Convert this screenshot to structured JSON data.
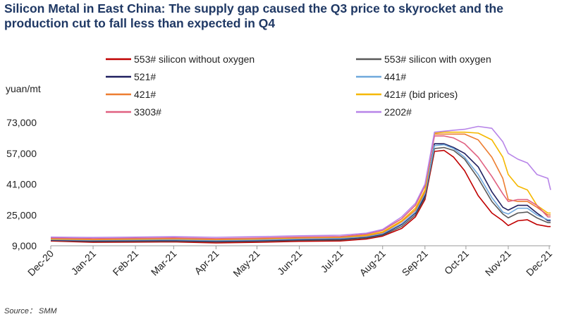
{
  "title": "Silicon Metal in East China: The supply gap caused the Q3 price to skyrocket and the production cut to fall less than expected in Q4",
  "source": "Source： SMM",
  "chart_data": {
    "type": "line",
    "ylabel": "yuan/mt",
    "xlabel": "",
    "ylim": [
      9000,
      73000
    ],
    "yticks": [
      9000,
      25000,
      41000,
      57000,
      73000
    ],
    "ytick_labels": [
      "9,000",
      "25,000",
      "41,000",
      "57,000",
      "73,000"
    ],
    "xlim": [
      "2020-12-01",
      "2021-12-02"
    ],
    "xticks": [
      "2020-12-01",
      "2021-01-01",
      "2021-02-01",
      "2021-03-01",
      "2021-04-01",
      "2021-05-01",
      "2021-06-01",
      "2021-07-01",
      "2021-08-01",
      "2021-09-01",
      "2021-10-01",
      "2021-11-01",
      "2021-12-01"
    ],
    "xtick_labels": [
      "Dec-20",
      "Jan-21",
      "Feb-21",
      "Mar-21",
      "Apr-21",
      "May-21",
      "Jun-21",
      "Jul-21",
      "Aug-21",
      "Sep-21",
      "Oct-21",
      "Nov-21",
      "Dec-21"
    ],
    "grid": false,
    "legend_position": "top",
    "series": [
      {
        "name": "553# silicon without oxygen",
        "color": "#c00000",
        "x": [
          "2020-12-01",
          "2021-01-01",
          "2021-02-01",
          "2021-03-01",
          "2021-04-01",
          "2021-05-01",
          "2021-06-01",
          "2021-07-01",
          "2021-07-20",
          "2021-08-01",
          "2021-08-15",
          "2021-08-25",
          "2021-09-01",
          "2021-09-08",
          "2021-09-15",
          "2021-09-22",
          "2021-09-30",
          "2021-10-10",
          "2021-10-20",
          "2021-10-28",
          "2021-11-01",
          "2021-11-08",
          "2021-11-15",
          "2021-11-22",
          "2021-11-30",
          "2021-12-02"
        ],
        "y": [
          11500,
          10800,
          10900,
          11000,
          10500,
          10800,
          11300,
          11500,
          12500,
          14000,
          18000,
          24000,
          33000,
          58000,
          58500,
          55000,
          48000,
          35000,
          26000,
          22000,
          19500,
          22000,
          22500,
          20000,
          19000,
          19000
        ]
      },
      {
        "name": "553# silicon with oxygen",
        "color": "#595959",
        "x": [
          "2020-12-01",
          "2021-01-01",
          "2021-02-01",
          "2021-03-01",
          "2021-04-01",
          "2021-05-01",
          "2021-06-01",
          "2021-07-01",
          "2021-07-20",
          "2021-08-01",
          "2021-08-15",
          "2021-08-25",
          "2021-09-01",
          "2021-09-08",
          "2021-09-15",
          "2021-09-22",
          "2021-09-30",
          "2021-10-10",
          "2021-10-20",
          "2021-10-28",
          "2021-11-01",
          "2021-11-08",
          "2021-11-15",
          "2021-11-22",
          "2021-11-30",
          "2021-12-02"
        ],
        "y": [
          11800,
          11200,
          11300,
          11400,
          11000,
          11300,
          11800,
          12000,
          13000,
          14500,
          19000,
          25000,
          34000,
          59500,
          60000,
          58500,
          54000,
          44000,
          32000,
          25500,
          23500,
          26000,
          26500,
          23500,
          21000,
          21000
        ]
      },
      {
        "name": "521#",
        "color": "#1f1f5f",
        "x": [
          "2020-12-01",
          "2021-01-01",
          "2021-02-01",
          "2021-03-01",
          "2021-04-01",
          "2021-05-01",
          "2021-06-01",
          "2021-07-01",
          "2021-07-20",
          "2021-08-01",
          "2021-08-15",
          "2021-08-25",
          "2021-09-01",
          "2021-09-08",
          "2021-09-15",
          "2021-09-22",
          "2021-09-30",
          "2021-10-10",
          "2021-10-20",
          "2021-10-28",
          "2021-11-01",
          "2021-11-08",
          "2021-11-15",
          "2021-11-22",
          "2021-11-30",
          "2021-12-02"
        ],
        "y": [
          12000,
          11600,
          11700,
          11800,
          11400,
          11700,
          12200,
          12500,
          13500,
          15000,
          20000,
          26000,
          35000,
          62000,
          62000,
          60000,
          57000,
          50000,
          37000,
          29000,
          27500,
          30000,
          30000,
          26000,
          22000,
          22000
        ]
      },
      {
        "name": "441#",
        "color": "#6fa8dc",
        "x": [
          "2020-12-01",
          "2021-01-01",
          "2021-02-01",
          "2021-03-01",
          "2021-04-01",
          "2021-05-01",
          "2021-06-01",
          "2021-07-01",
          "2021-07-20",
          "2021-08-01",
          "2021-08-15",
          "2021-08-25",
          "2021-09-01",
          "2021-09-08",
          "2021-09-15",
          "2021-09-22",
          "2021-09-30",
          "2021-10-10",
          "2021-10-20",
          "2021-10-28",
          "2021-11-01",
          "2021-11-08",
          "2021-11-15",
          "2021-11-22",
          "2021-11-30",
          "2021-12-02"
        ],
        "y": [
          12200,
          11900,
          12000,
          12100,
          11700,
          12000,
          12500,
          12800,
          13800,
          15300,
          20500,
          26500,
          36000,
          61000,
          61500,
          59500,
          55000,
          46000,
          34000,
          26500,
          25500,
          28500,
          28500,
          25000,
          22500,
          22500
        ]
      },
      {
        "name": "421#",
        "color": "#ed7d31",
        "x": [
          "2020-12-01",
          "2021-01-01",
          "2021-02-01",
          "2021-03-01",
          "2021-04-01",
          "2021-05-01",
          "2021-06-01",
          "2021-07-01",
          "2021-07-20",
          "2021-08-01",
          "2021-08-15",
          "2021-08-25",
          "2021-09-01",
          "2021-09-08",
          "2021-09-15",
          "2021-09-22",
          "2021-09-30",
          "2021-10-10",
          "2021-10-20",
          "2021-10-28",
          "2021-11-01",
          "2021-11-08",
          "2021-11-15",
          "2021-11-22",
          "2021-11-30",
          "2021-12-02"
        ],
        "y": [
          12500,
          12200,
          12400,
          12600,
          12200,
          12500,
          13000,
          13300,
          14200,
          15800,
          21500,
          27500,
          37000,
          67000,
          67000,
          67000,
          67000,
          64000,
          55000,
          44000,
          33000,
          32000,
          32000,
          29000,
          25000,
          25000
        ]
      },
      {
        "name": "421# (bid prices)",
        "color": "#f5b800",
        "x": [
          "2020-12-01",
          "2021-01-01",
          "2021-02-01",
          "2021-03-01",
          "2021-04-01",
          "2021-05-01",
          "2021-06-01",
          "2021-07-01",
          "2021-07-20",
          "2021-08-01",
          "2021-08-15",
          "2021-08-25",
          "2021-09-01",
          "2021-09-08",
          "2021-09-15",
          "2021-09-22",
          "2021-09-30",
          "2021-10-10",
          "2021-10-20",
          "2021-10-28",
          "2021-11-01",
          "2021-11-08",
          "2021-11-15",
          "2021-11-22",
          "2021-11-30",
          "2021-12-02"
        ],
        "y": [
          12700,
          12400,
          12600,
          12800,
          12400,
          12700,
          13200,
          13500,
          14500,
          16200,
          22000,
          28500,
          38000,
          67500,
          68000,
          68000,
          68000,
          67500,
          64000,
          55000,
          46000,
          40000,
          38000,
          30000,
          26000,
          26000
        ]
      },
      {
        "name": "3303#",
        "color": "#e06080",
        "x": [
          "2020-12-01",
          "2021-01-01",
          "2021-02-01",
          "2021-03-01",
          "2021-04-01",
          "2021-05-01",
          "2021-06-01",
          "2021-07-01",
          "2021-07-20",
          "2021-08-01",
          "2021-08-15",
          "2021-08-25",
          "2021-09-01",
          "2021-09-08",
          "2021-09-15",
          "2021-09-22",
          "2021-09-30",
          "2021-10-10",
          "2021-10-20",
          "2021-10-28",
          "2021-11-01",
          "2021-11-08",
          "2021-11-15",
          "2021-11-22",
          "2021-11-30",
          "2021-12-02"
        ],
        "y": [
          13000,
          12700,
          12900,
          13100,
          12700,
          13000,
          13500,
          13800,
          15000,
          17000,
          23000,
          30000,
          40000,
          66000,
          66000,
          65000,
          62000,
          55000,
          45000,
          36000,
          32000,
          33000,
          33000,
          30000,
          24000,
          24000
        ]
      },
      {
        "name": "2202#",
        "color": "#b784e8",
        "x": [
          "2020-12-01",
          "2021-01-01",
          "2021-02-01",
          "2021-03-01",
          "2021-04-01",
          "2021-05-01",
          "2021-06-01",
          "2021-07-01",
          "2021-07-20",
          "2021-08-01",
          "2021-08-15",
          "2021-08-25",
          "2021-09-01",
          "2021-09-08",
          "2021-09-15",
          "2021-09-22",
          "2021-09-30",
          "2021-10-10",
          "2021-10-20",
          "2021-10-28",
          "2021-11-01",
          "2021-11-08",
          "2021-11-15",
          "2021-11-22",
          "2021-11-30",
          "2021-12-02"
        ],
        "y": [
          13500,
          13300,
          13500,
          13700,
          13400,
          13700,
          14200,
          14500,
          15500,
          17500,
          24000,
          31000,
          41000,
          68000,
          68500,
          69000,
          69500,
          71000,
          70000,
          63000,
          57000,
          54000,
          52000,
          46000,
          44000,
          38000
        ]
      }
    ]
  }
}
